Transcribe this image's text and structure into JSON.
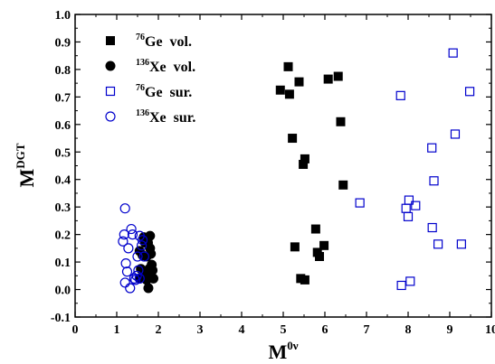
{
  "chart_data": {
    "type": "scatter",
    "xlabel": "M",
    "xlabel_superscript": "0ν",
    "ylabel": "M",
    "ylabel_superscript": "DGT",
    "xlim": [
      0,
      10
    ],
    "ylim": [
      -0.1,
      1.0
    ],
    "x_ticks": [
      "0",
      "1",
      "2",
      "3",
      "4",
      "5",
      "6",
      "7",
      "8",
      "9",
      "10"
    ],
    "y_ticks": [
      "-0.1",
      "0.0",
      "0.1",
      "0.2",
      "0.3",
      "0.4",
      "0.5",
      "0.6",
      "0.7",
      "0.8",
      "0.9",
      "1.0"
    ],
    "grid": false,
    "legend_position": "top-left",
    "series": [
      {
        "name": "Ge vol.",
        "name_superscript": "76",
        "marker": "filled-square",
        "color": "#000000",
        "points": [
          [
            4.93,
            0.725
          ],
          [
            5.12,
            0.81
          ],
          [
            5.15,
            0.71
          ],
          [
            5.22,
            0.55
          ],
          [
            5.38,
            0.755
          ],
          [
            5.48,
            0.455
          ],
          [
            5.52,
            0.475
          ],
          [
            6.08,
            0.765
          ],
          [
            6.32,
            0.775
          ],
          [
            6.38,
            0.61
          ],
          [
            6.44,
            0.38
          ],
          [
            5.28,
            0.155
          ],
          [
            5.78,
            0.22
          ],
          [
            5.82,
            0.135
          ],
          [
            5.87,
            0.12
          ],
          [
            5.98,
            0.16
          ],
          [
            5.42,
            0.04
          ],
          [
            5.52,
            0.035
          ]
        ]
      },
      {
        "name": "Xe vol.",
        "name_superscript": "136",
        "marker": "filled-circle",
        "color": "#000000",
        "points": [
          [
            1.55,
            0.14
          ],
          [
            1.58,
            0.075
          ],
          [
            1.55,
            0.04
          ],
          [
            1.65,
            0.19
          ],
          [
            1.68,
            0.065
          ],
          [
            1.72,
            0.12
          ],
          [
            1.72,
            0.035
          ],
          [
            1.75,
            0.17
          ],
          [
            1.76,
            0.005
          ],
          [
            1.78,
            0.075
          ],
          [
            1.8,
            0.15
          ],
          [
            1.8,
            0.195
          ],
          [
            1.82,
            0.05
          ],
          [
            1.82,
            0.13
          ],
          [
            1.84,
            0.09
          ],
          [
            1.86,
            0.07
          ],
          [
            1.88,
            0.04
          ],
          [
            1.62,
            0.125
          ],
          [
            1.68,
            0.17
          ]
        ]
      },
      {
        "name": "Ge sur.",
        "name_superscript": "76",
        "marker": "open-square",
        "color": "#0000cc",
        "points": [
          [
            6.84,
            0.315
          ],
          [
            7.82,
            0.705
          ],
          [
            7.84,
            0.015
          ],
          [
            7.95,
            0.295
          ],
          [
            8.0,
            0.265
          ],
          [
            8.02,
            0.325
          ],
          [
            8.05,
            0.03
          ],
          [
            8.18,
            0.305
          ],
          [
            8.57,
            0.515
          ],
          [
            8.58,
            0.225
          ],
          [
            8.62,
            0.395
          ],
          [
            8.72,
            0.165
          ],
          [
            9.08,
            0.86
          ],
          [
            9.13,
            0.565
          ],
          [
            9.28,
            0.165
          ],
          [
            9.48,
            0.72
          ]
        ]
      },
      {
        "name": "Xe sur.",
        "name_superscript": "136",
        "marker": "open-circle",
        "color": "#0000cc",
        "points": [
          [
            1.2,
            0.295
          ],
          [
            1.18,
            0.2
          ],
          [
            1.15,
            0.175
          ],
          [
            1.22,
            0.095
          ],
          [
            1.25,
            0.065
          ],
          [
            1.2,
            0.025
          ],
          [
            1.28,
            0.15
          ],
          [
            1.32,
            0.005
          ],
          [
            1.35,
            0.22
          ],
          [
            1.38,
            0.2
          ],
          [
            1.42,
            0.04
          ],
          [
            1.45,
            0.035
          ],
          [
            1.48,
            0.05
          ],
          [
            1.5,
            0.12
          ],
          [
            1.52,
            0.07
          ],
          [
            1.55,
            0.195
          ],
          [
            1.6,
            0.16
          ],
          [
            1.62,
            0.18
          ],
          [
            1.66,
            0.12
          ],
          [
            1.55,
            0.04
          ]
        ]
      }
    ]
  }
}
